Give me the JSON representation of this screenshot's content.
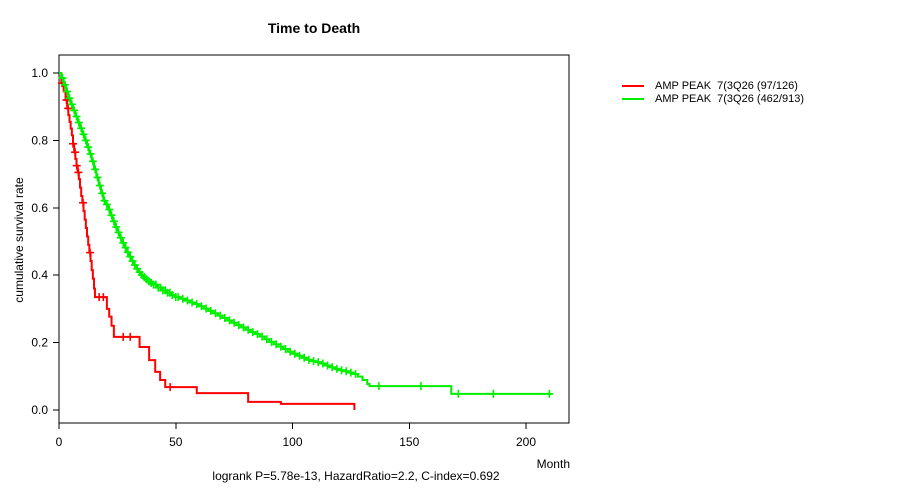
{
  "title": "Time to Death",
  "axes": {
    "ylabel": "cumulative survival rate",
    "xlabel": "Month"
  },
  "footnote": "logrank P=5.78e-13, HazardRatio=2.2, C-index=0.692",
  "legend": [
    {
      "label": "AMP PEAK  7(3Q26 (97/126)",
      "color": "#ff0000"
    },
    {
      "label": "AMP PEAK  7(3Q26 (462/913)",
      "color": "#00ee00"
    }
  ],
  "chart_data": {
    "type": "line",
    "subtype": "kaplan-meier-step",
    "title": "Time to Death",
    "xlabel": "Month",
    "ylabel": "cumulative survival rate",
    "xlim": [
      0,
      218
    ],
    "ylim": [
      0.0,
      1.0
    ],
    "x_ticks": [
      0,
      50,
      100,
      150,
      200
    ],
    "y_ticks": [
      0.0,
      0.2,
      0.4,
      0.6,
      0.8,
      1.0
    ],
    "y_tick_labels": [
      "0.0",
      "0.2",
      "0.4",
      "0.6",
      "0.8",
      "1.0"
    ],
    "grid": false,
    "legend_position": "right-outside",
    "series": [
      {
        "name": "AMP PEAK  7(3Q26 (97/126)",
        "color": "#ff0000",
        "steps": [
          [
            0,
            1.0
          ],
          [
            1,
            0.97
          ],
          [
            2,
            0.945
          ],
          [
            2.8,
            0.92
          ],
          [
            3.5,
            0.895
          ],
          [
            4,
            0.875
          ],
          [
            4.5,
            0.855
          ],
          [
            5,
            0.835
          ],
          [
            5.5,
            0.815
          ],
          [
            6,
            0.79
          ],
          [
            6.5,
            0.765
          ],
          [
            7,
            0.745
          ],
          [
            7.5,
            0.725
          ],
          [
            8,
            0.705
          ],
          [
            8.5,
            0.685
          ],
          [
            9,
            0.66
          ],
          [
            9.5,
            0.635
          ],
          [
            10,
            0.615
          ],
          [
            10.5,
            0.59
          ],
          [
            11,
            0.565
          ],
          [
            11.5,
            0.54
          ],
          [
            12,
            0.515
          ],
          [
            12.5,
            0.49
          ],
          [
            13,
            0.467
          ],
          [
            13.5,
            0.442
          ],
          [
            14,
            0.415
          ],
          [
            14.5,
            0.39
          ],
          [
            15,
            0.36
          ],
          [
            15.4,
            0.335
          ],
          [
            20.5,
            0.3
          ],
          [
            21.5,
            0.277
          ],
          [
            22.5,
            0.25
          ],
          [
            23.5,
            0.217
          ],
          [
            34.5,
            0.187
          ],
          [
            38.6,
            0.148
          ],
          [
            41.2,
            0.113
          ],
          [
            43.3,
            0.089
          ],
          [
            45.5,
            0.068
          ],
          [
            59,
            0.05
          ],
          [
            81,
            0.024
          ],
          [
            95,
            0.018
          ],
          [
            126.5,
            0.0
          ]
        ],
        "censor_months": [
          1.3,
          3.2,
          3.9,
          6.0,
          6.9,
          7.6,
          8.3,
          10.3,
          13.3,
          17.2,
          19.0,
          27.5,
          30.5,
          47.6
        ]
      },
      {
        "name": "AMP PEAK  7(3Q26 (462/913)",
        "color": "#00ee00",
        "steps": [
          [
            0,
            1.0
          ],
          [
            1,
            0.985
          ],
          [
            2,
            0.965
          ],
          [
            3,
            0.945
          ],
          [
            4,
            0.925
          ],
          [
            5,
            0.907
          ],
          [
            6,
            0.889
          ],
          [
            7,
            0.871
          ],
          [
            8,
            0.853
          ],
          [
            9,
            0.836
          ],
          [
            10,
            0.818
          ],
          [
            11,
            0.8
          ],
          [
            12,
            0.78
          ],
          [
            13,
            0.76
          ],
          [
            14,
            0.738
          ],
          [
            15,
            0.714
          ],
          [
            16,
            0.69
          ],
          [
            17,
            0.666
          ],
          [
            18,
            0.643
          ],
          [
            19,
            0.621
          ],
          [
            20,
            0.61
          ],
          [
            21,
            0.595
          ],
          [
            22,
            0.578
          ],
          [
            23,
            0.56
          ],
          [
            24,
            0.543
          ],
          [
            25,
            0.527
          ],
          [
            26,
            0.511
          ],
          [
            27,
            0.496
          ],
          [
            28,
            0.482
          ],
          [
            29,
            0.468
          ],
          [
            30,
            0.455
          ],
          [
            31,
            0.442
          ],
          [
            32,
            0.43
          ],
          [
            33,
            0.419
          ],
          [
            34,
            0.409
          ],
          [
            35,
            0.401
          ],
          [
            36,
            0.394
          ],
          [
            37,
            0.388
          ],
          [
            38,
            0.382
          ],
          [
            39,
            0.377
          ],
          [
            40,
            0.372
          ],
          [
            42,
            0.363
          ],
          [
            44,
            0.355
          ],
          [
            46,
            0.348
          ],
          [
            48,
            0.341
          ],
          [
            50,
            0.335
          ],
          [
            52,
            0.33
          ],
          [
            54,
            0.325
          ],
          [
            56,
            0.319
          ],
          [
            58,
            0.314
          ],
          [
            60,
            0.308
          ],
          [
            62,
            0.301
          ],
          [
            64,
            0.294
          ],
          [
            66,
            0.287
          ],
          [
            68,
            0.28
          ],
          [
            70,
            0.273
          ],
          [
            72,
            0.266
          ],
          [
            74,
            0.259
          ],
          [
            76,
            0.252
          ],
          [
            78,
            0.245
          ],
          [
            80,
            0.238
          ],
          [
            82,
            0.231
          ],
          [
            84,
            0.225
          ],
          [
            86,
            0.218
          ],
          [
            88,
            0.21
          ],
          [
            90,
            0.202
          ],
          [
            92,
            0.195
          ],
          [
            94,
            0.188
          ],
          [
            96,
            0.181
          ],
          [
            98,
            0.173
          ],
          [
            100,
            0.167
          ],
          [
            102,
            0.161
          ],
          [
            104,
            0.155
          ],
          [
            106,
            0.149
          ],
          [
            108,
            0.145
          ],
          [
            110,
            0.142
          ],
          [
            112,
            0.138
          ],
          [
            114,
            0.132
          ],
          [
            116,
            0.127
          ],
          [
            118,
            0.122
          ],
          [
            120,
            0.118
          ],
          [
            122,
            0.115
          ],
          [
            124,
            0.111
          ],
          [
            126,
            0.107
          ],
          [
            128,
            0.099
          ],
          [
            130,
            0.089
          ],
          [
            132,
            0.077
          ],
          [
            133,
            0.071
          ],
          [
            168,
            0.048
          ],
          [
            211,
            0.048
          ]
        ],
        "censor_months": [
          1.5,
          2.5,
          3.5,
          4.5,
          5.5,
          6.5,
          7.5,
          8.5,
          9.5,
          10.5,
          11.5,
          12.5,
          13.5,
          14.5,
          15.5,
          16.5,
          17.5,
          18.5,
          19.5,
          20.5,
          21.5,
          22.5,
          23.5,
          24.5,
          25.5,
          26.5,
          27.5,
          28.5,
          29.5,
          30.5,
          31.5,
          32.5,
          33.5,
          34.5,
          35.5,
          36.5,
          37.5,
          38.5,
          39.5,
          40.5,
          41.5,
          42.5,
          43.5,
          44.5,
          45.5,
          46.5,
          47.5,
          48.5,
          50,
          51,
          53,
          55,
          57,
          59,
          61,
          63,
          65,
          67,
          69,
          71,
          73,
          75,
          77,
          79,
          81,
          83,
          85,
          87,
          89,
          91,
          93,
          95,
          97,
          99,
          101,
          103,
          105,
          107,
          109,
          111,
          113,
          115,
          117,
          119,
          121,
          123,
          125,
          127,
          137,
          155,
          171,
          186,
          210
        ]
      }
    ]
  }
}
